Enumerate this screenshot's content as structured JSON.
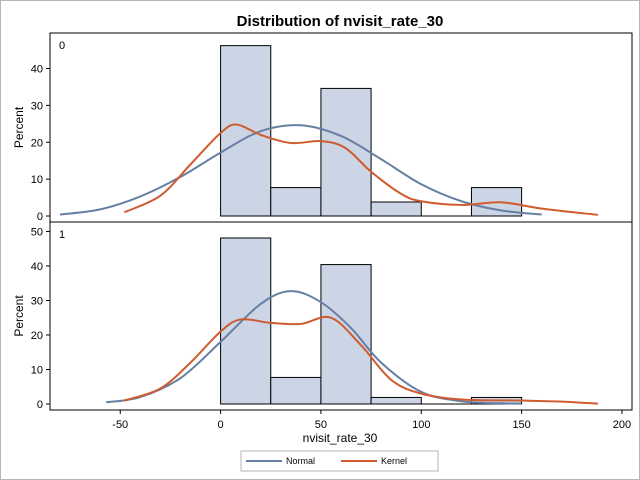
{
  "chart_data": {
    "type": "bar",
    "title": "Distribution of nvisit_rate_30",
    "xlabel": "nvisit_rate_30",
    "ylabel": "Percent",
    "xlim": [
      -85,
      205
    ],
    "x_ticks": [
      -50,
      0,
      50,
      100,
      150,
      200
    ],
    "bin_edges": [
      0,
      25,
      50,
      75,
      100,
      125,
      150
    ],
    "bar_color": "#cbd5e6",
    "normal_color": "#667fa2",
    "kernel_color": "#d05b2f",
    "legend": {
      "position": "bottom-center",
      "entries": [
        "Normal",
        "Kernel"
      ]
    },
    "panels": [
      {
        "label": "0",
        "ylim": [
          0,
          48
        ],
        "y_ticks": [
          0,
          10,
          20,
          30,
          40
        ],
        "values": [
          46.2,
          7.7,
          34.6,
          3.8,
          0,
          7.7
        ],
        "normal": {
          "x": [
            -80,
            -60,
            -40,
            -20,
            0,
            20,
            40,
            60,
            80,
            100,
            120,
            140,
            160
          ],
          "y": [
            0.4,
            1.8,
            5.3,
            10.6,
            17.2,
            23.0,
            24.6,
            21.7,
            15.4,
            8.6,
            4.0,
            1.5,
            0.4
          ]
        },
        "kernel": {
          "x": [
            -48,
            -30,
            -15,
            0,
            8,
            20,
            35,
            50,
            62,
            75,
            90,
            100,
            120,
            140,
            160,
            188
          ],
          "y": [
            1.0,
            5.5,
            14.0,
            22.5,
            24.8,
            22.0,
            19.8,
            20.3,
            18.5,
            12.0,
            6.0,
            4.0,
            3.0,
            3.7,
            2.0,
            0.3
          ]
        }
      },
      {
        "label": "1",
        "ylim": [
          0,
          51
        ],
        "y_ticks": [
          0,
          10,
          20,
          30,
          40,
          50
        ],
        "values": [
          48.1,
          7.7,
          40.4,
          1.9,
          0,
          1.9
        ],
        "normal": {
          "x": [
            -57,
            -40,
            -20,
            0,
            20,
            35,
            50,
            65,
            80,
            100,
            120,
            140,
            150
          ],
          "y": [
            0.5,
            2.0,
            7.5,
            18.0,
            29.0,
            32.7,
            29.5,
            22.0,
            12.0,
            3.5,
            0.8,
            0.2,
            0.1
          ]
        },
        "kernel": {
          "x": [
            -48,
            -30,
            -15,
            0,
            10,
            25,
            40,
            55,
            70,
            85,
            100,
            120,
            150,
            170,
            188
          ],
          "y": [
            1.0,
            4.5,
            12.0,
            21.0,
            24.5,
            23.5,
            23.2,
            25.0,
            17.0,
            7.0,
            3.0,
            1.3,
            1.0,
            0.7,
            0.1
          ]
        }
      }
    ]
  }
}
